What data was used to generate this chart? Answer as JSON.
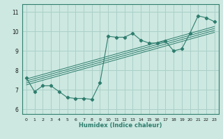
{
  "title": "",
  "xlabel": "Humidex (Indice chaleur)",
  "ylabel": "",
  "bg_color": "#cce8e0",
  "grid_color": "#aad0c8",
  "line_color": "#2e7d6e",
  "tick_color": "#1a1a1a",
  "xlim": [
    -0.5,
    23.5
  ],
  "ylim": [
    5.75,
    11.4
  ],
  "xticks": [
    0,
    1,
    2,
    3,
    4,
    5,
    6,
    7,
    8,
    9,
    10,
    11,
    12,
    13,
    14,
    15,
    16,
    17,
    18,
    19,
    20,
    21,
    22,
    23
  ],
  "yticks": [
    6,
    7,
    8,
    9,
    10,
    11
  ],
  "scatter_x": [
    0,
    1,
    2,
    3,
    4,
    5,
    6,
    7,
    8,
    9,
    10,
    11,
    12,
    13,
    14,
    15,
    16,
    17,
    18,
    19,
    20,
    21,
    22,
    23
  ],
  "scatter_y": [
    7.6,
    6.9,
    7.2,
    7.2,
    6.9,
    6.6,
    6.55,
    6.55,
    6.5,
    7.35,
    9.75,
    9.7,
    9.7,
    9.9,
    9.55,
    9.4,
    9.4,
    9.5,
    9.0,
    9.1,
    9.9,
    10.8,
    10.7,
    10.5
  ],
  "reg_lines": [
    {
      "x": [
        0,
        23
      ],
      "y": [
        7.25,
        9.95
      ]
    },
    {
      "x": [
        0,
        23
      ],
      "y": [
        7.35,
        10.05
      ]
    },
    {
      "x": [
        0,
        23
      ],
      "y": [
        7.45,
        10.15
      ]
    },
    {
      "x": [
        0,
        23
      ],
      "y": [
        7.55,
        10.25
      ]
    }
  ],
  "xlabel_fontsize": 6.0,
  "xtick_fontsize": 4.5,
  "ytick_fontsize": 5.5
}
